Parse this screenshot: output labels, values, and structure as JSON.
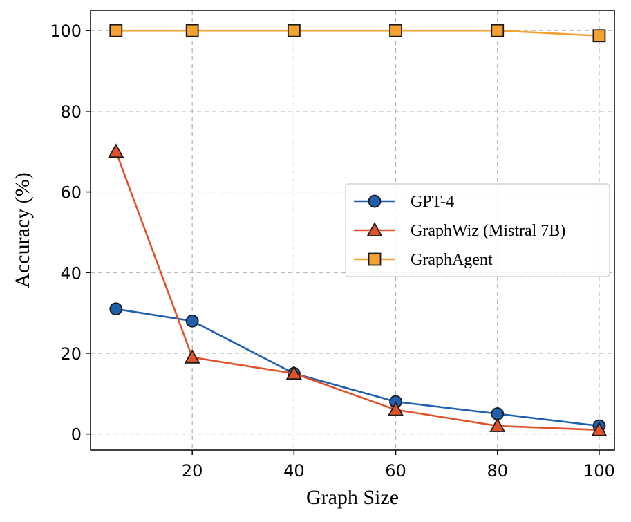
{
  "chart_data": {
    "type": "line",
    "title": "",
    "xlabel": "Graph Size",
    "ylabel": "Accuracy (%)",
    "x": [
      5,
      20,
      40,
      60,
      80,
      100
    ],
    "xlim": [
      0,
      103
    ],
    "ylim": [
      -4,
      105
    ],
    "xticks": [
      20,
      40,
      60,
      80,
      100
    ],
    "yticks": [
      0,
      20,
      40,
      60,
      80,
      100
    ],
    "grid": true,
    "legend_position": "center-right",
    "series": [
      {
        "name": "GPT-4",
        "color": "#1f5fae",
        "marker": "circle",
        "values": [
          31,
          28,
          15,
          8,
          5,
          2
        ]
      },
      {
        "name": "GraphWiz (Mistral 7B)",
        "color": "#e0532a",
        "marker": "triangle",
        "values": [
          70,
          19,
          15,
          6,
          2,
          1
        ]
      },
      {
        "name": "GraphAgent",
        "color": "#f5a12f",
        "marker": "square",
        "values": [
          100,
          100,
          100,
          100,
          100,
          98.7
        ]
      }
    ]
  }
}
